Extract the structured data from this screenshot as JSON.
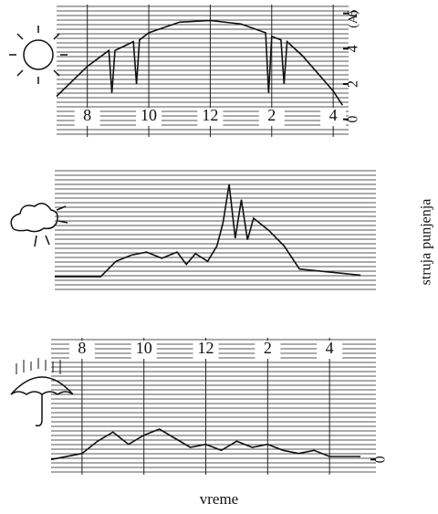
{
  "chart_data": [
    {
      "type": "line",
      "xlim": [
        7,
        16.5
      ],
      "xticks": [
        8,
        10,
        12,
        {
          "value": 14,
          "label": "2"
        },
        {
          "value": 16,
          "label": "4"
        }
      ],
      "ylim": [
        -1,
        6.5
      ],
      "yticks": [
        0,
        2,
        4,
        6
      ],
      "y_unit": "(A)",
      "x": [
        7,
        8,
        8.7,
        8.8,
        8.9,
        9.5,
        9.6,
        9.7,
        10,
        11,
        12,
        13,
        13.8,
        13.9,
        14,
        14.3,
        14.4,
        14.5,
        15,
        16,
        16.3
      ],
      "values": [
        1.3,
        3,
        3.9,
        1.5,
        3.9,
        4.4,
        2,
        4.5,
        4.9,
        5.5,
        5.6,
        5.4,
        4.9,
        1.5,
        4.7,
        4.5,
        2,
        4.4,
        3.6,
        1.6,
        0.8
      ]
    },
    {
      "type": "line",
      "xlim": [
        7,
        17.5
      ],
      "ylim": [
        -1,
        7
      ],
      "x": [
        7,
        8.5,
        9,
        9.5,
        10,
        10.5,
        11,
        11.3,
        11.6,
        12,
        12.3,
        12.5,
        12.7,
        12.9,
        13.1,
        13.3,
        13.5,
        14,
        14.5,
        15,
        16,
        17
      ],
      "values": [
        0,
        0,
        1,
        1.4,
        1.6,
        1.2,
        1.6,
        0.8,
        1.5,
        1,
        2,
        3.5,
        6,
        2.5,
        5,
        2.4,
        3.8,
        3,
        2,
        0.5,
        0.3,
        0.1
      ]
    },
    {
      "type": "line",
      "xlim": [
        7,
        17.5
      ],
      "xticks": [
        8,
        10,
        12,
        {
          "value": 14,
          "label": "2"
        },
        {
          "value": 16,
          "label": "4"
        }
      ],
      "ylim": [
        -0.5,
        4
      ],
      "yticks": [
        0
      ],
      "x": [
        7,
        8,
        8.5,
        9,
        9.5,
        10,
        10.5,
        11,
        11.5,
        12,
        12.5,
        13,
        13.5,
        14,
        14.5,
        15,
        15.5,
        16,
        17
      ],
      "values": [
        0,
        0.2,
        0.6,
        0.9,
        0.5,
        0.8,
        1,
        0.7,
        0.4,
        0.5,
        0.3,
        0.6,
        0.4,
        0.5,
        0.3,
        0.2,
        0.3,
        0.1,
        0.1
      ]
    }
  ],
  "xlabel": "vreme",
  "ylabel": "struja punjenja"
}
